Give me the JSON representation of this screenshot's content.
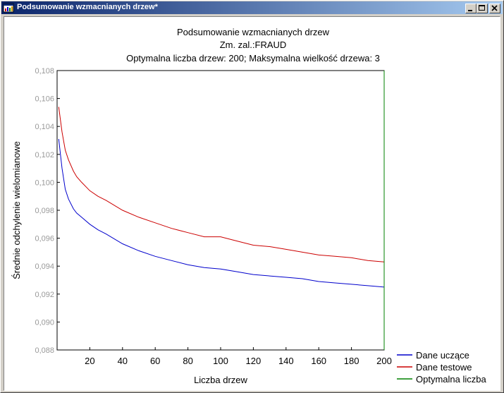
{
  "window": {
    "title": "Podsumowanie wzmacnianych drzew*",
    "icon": "chart-window-icon",
    "buttons": [
      "minimize-icon",
      "maximize-icon",
      "close-icon"
    ]
  },
  "chart_data": {
    "type": "line",
    "title": "Podsumowanie wzmacnianych drzew",
    "subtitle_lines": [
      "Zm. zal.:FRAUD",
      "Optymalna liczba drzew: 200; Maksymalna wielkość drzewa: 3"
    ],
    "xlabel": "Liczba drzew",
    "ylabel": "Średnie odchylenie wielomianowe",
    "xlim": [
      0,
      200
    ],
    "ylim": [
      0.088,
      0.108
    ],
    "x_ticks": [
      20,
      40,
      60,
      80,
      100,
      120,
      140,
      160,
      180,
      200
    ],
    "y_ticks": [
      "0,088",
      "0,090",
      "0,092",
      "0,094",
      "0,096",
      "0,098",
      "0,100",
      "0,102",
      "0,104",
      "0,106",
      "0,108"
    ],
    "y_tick_values": [
      0.088,
      0.09,
      0.092,
      0.094,
      0.096,
      0.098,
      0.1,
      0.102,
      0.104,
      0.106,
      0.108
    ],
    "grid": false,
    "legend_position": "bottom-right",
    "series": [
      {
        "name": "Dane uczące",
        "color": "#0000cc",
        "x": [
          1,
          3,
          5,
          7,
          10,
          12,
          15,
          20,
          25,
          30,
          40,
          50,
          60,
          70,
          80,
          90,
          100,
          110,
          120,
          130,
          140,
          150,
          160,
          170,
          180,
          190,
          200
        ],
        "y": [
          0.1031,
          0.101,
          0.0995,
          0.0988,
          0.0981,
          0.0978,
          0.0975,
          0.097,
          0.0966,
          0.0963,
          0.0956,
          0.0951,
          0.0947,
          0.0944,
          0.0941,
          0.0939,
          0.0938,
          0.0936,
          0.0934,
          0.0933,
          0.0932,
          0.0931,
          0.0929,
          0.0928,
          0.0927,
          0.0926,
          0.0925
        ]
      },
      {
        "name": "Dane testowe",
        "color": "#cc0000",
        "x": [
          1,
          3,
          5,
          7,
          10,
          12,
          15,
          20,
          25,
          30,
          40,
          50,
          60,
          70,
          80,
          90,
          100,
          110,
          120,
          130,
          140,
          150,
          160,
          170,
          180,
          190,
          200
        ],
        "y": [
          0.1054,
          0.1036,
          0.1023,
          0.1016,
          0.1008,
          0.1004,
          0.1,
          0.0994,
          0.099,
          0.0987,
          0.098,
          0.0975,
          0.0971,
          0.0967,
          0.0964,
          0.0961,
          0.0961,
          0.0958,
          0.0955,
          0.0954,
          0.0952,
          0.095,
          0.0948,
          0.0947,
          0.0946,
          0.0944,
          0.0943
        ]
      },
      {
        "name": "Optymalna liczba",
        "color": "#008000",
        "x": [
          200,
          200
        ],
        "y": [
          0.088,
          0.108
        ]
      }
    ]
  }
}
